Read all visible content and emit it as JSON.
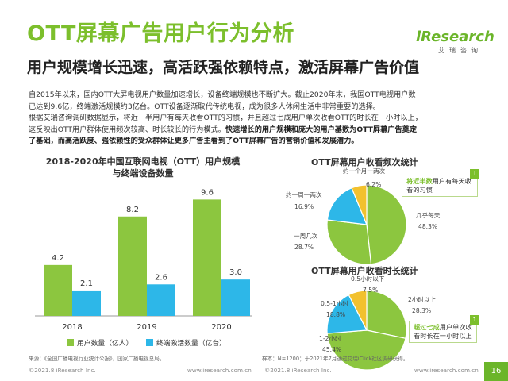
{
  "header": {
    "title": "OTT屏幕广告用户行为分析",
    "subtitle": "用户规模增长迅速，高活跃强依赖特点，激活屏幕广告价值",
    "logo_mark": "iResearch",
    "logo_sub": "艾瑞咨询"
  },
  "body": {
    "line1": "自2015年以来，国内OTT大屏电视用户数量加速增长，设备终端规模也不断扩大。截止2020年末，我国OTT电视用户数",
    "line2": "已达到9.6亿，终端激活规模约3亿台。OTT设备逐渐取代传统电视，成为很多人休闲生活中非常重要的选择。",
    "line3": "根据艾瑞咨询调研数据显示，将近一半用户有每天收看OTT的习惯，并且超过七成用户单次收看OTT的时长在一小时以上，",
    "line4": "这反映出OTT用户群体使用频次较高、时长较长的行为模式。",
    "line4_bold": "快速增长的用户规模和庞大的用户基数为OTT屏幕广告奠定",
    "line5_bold": "了基础，而高活跃度、强依赖性的受众群体让更多广告主看到了OTT屏幕广告的营销价值和发展潜力。"
  },
  "sources": {
    "left": "来源：《全国广播电视行业统计公报》，国家广播电视总局。",
    "right": "样本：N=1200；于2021年7月通过艾瑞iClick社区调研获得。"
  },
  "footer": {
    "left": "©2021.8 iResearch Inc.",
    "left_url": "www.iresearch.com.cn",
    "right": "©2021.8 iResearch Inc.",
    "right_url": "www.iresearch.com.cn",
    "page": "16"
  },
  "notes": {
    "freq_prefix": "",
    "freq_bold": "将近半数",
    "freq_rest": "用户有每天收看的习惯",
    "dur_bold": "超过七成",
    "dur_rest": "用户单次收看时长在一小时以上",
    "badge": "1"
  },
  "colors": {
    "green": "#8cc63f",
    "blue": "#2db7e8",
    "yellow": "#f2c12e"
  },
  "chart_data": [
    {
      "type": "bar",
      "title": "2018-2020年中国互联网电视（OTT）用户规模",
      "title2": "与终端设备数量",
      "categories": [
        "2018",
        "2019",
        "2020"
      ],
      "series": [
        {
          "name": "用户数量（亿人）",
          "values": [
            4.2,
            8.2,
            9.6
          ],
          "color": "#8cc63f"
        },
        {
          "name": "终端激活数量（亿台）",
          "values": [
            2.1,
            2.6,
            3.0
          ],
          "color": "#2db7e8"
        }
      ],
      "ylim": [
        0,
        11
      ],
      "legend": "bottom"
    },
    {
      "type": "pie",
      "title": "OTT屏幕用户收看频次统计",
      "slices": [
        {
          "label": "几乎每天",
          "value": 48.3,
          "display": "48.3%",
          "color": "#8cc63f"
        },
        {
          "label": "一周几次",
          "value": 28.7,
          "display": "28.7%",
          "color": "#8cc63f"
        },
        {
          "label": "约一周一两次",
          "value": 16.9,
          "display": "16.9%",
          "color": "#2db7e8"
        },
        {
          "label": "约一个月一两次",
          "value": 6.2,
          "display": "6.2%",
          "color": "#f2c12e"
        }
      ]
    },
    {
      "type": "pie",
      "title": "OTT屏幕用户收看时长统计",
      "slices": [
        {
          "label": "2小时以上",
          "value": 28.3,
          "display": "28.3%",
          "color": "#8cc63f"
        },
        {
          "label": "1-2小时",
          "value": 45.4,
          "display": "45.4%",
          "color": "#8cc63f"
        },
        {
          "label": "0.5-1小时",
          "value": 18.8,
          "display": "18.8%",
          "color": "#2db7e8"
        },
        {
          "label": "0.5小时以下",
          "value": 7.5,
          "display": "7.5%",
          "color": "#f2c12e"
        }
      ]
    }
  ]
}
